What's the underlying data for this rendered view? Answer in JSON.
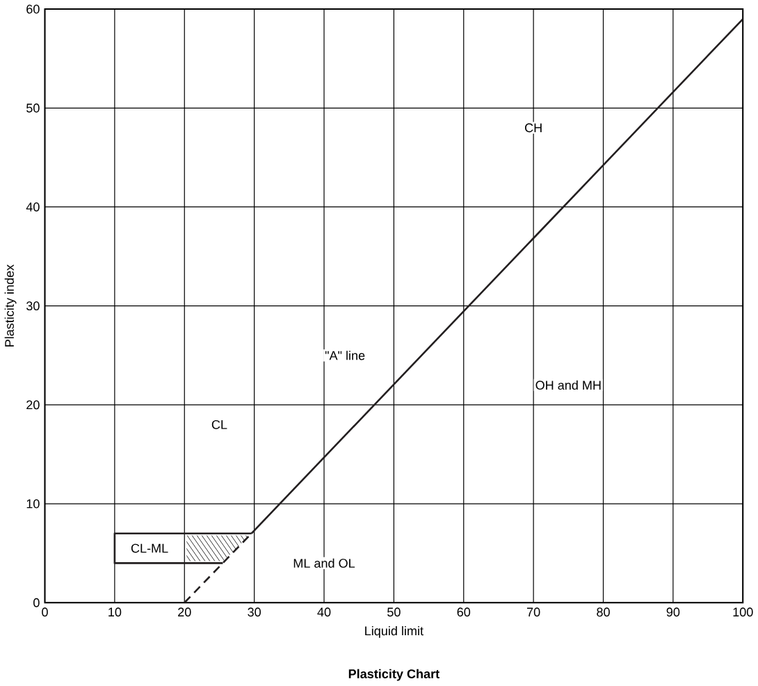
{
  "chart_data": {
    "type": "line",
    "title": "Plasticity Chart",
    "xlabel": "Liquid limit",
    "ylabel": "Plasticity index",
    "xlim": [
      0,
      100
    ],
    "ylim": [
      0,
      60
    ],
    "xticks": [
      0,
      10,
      20,
      30,
      40,
      50,
      60,
      70,
      80,
      90,
      100
    ],
    "yticks": [
      0,
      10,
      20,
      30,
      40,
      50,
      60
    ],
    "grid": true,
    "series": [
      {
        "color": "#231f20",
        "line_style": "dashed",
        "x": [
          20,
          29.6
        ],
        "values": [
          0,
          7
        ]
      },
      {
        "color": "#231f20",
        "line_style": "solid",
        "x": [
          29.6,
          100
        ],
        "values": [
          7,
          59
        ]
      },
      {
        "color": "#231f20",
        "line_style": "solid",
        "x": [
          25.5,
          10,
          10,
          29.6
        ],
        "values": [
          4,
          4,
          7,
          7
        ]
      }
    ],
    "annotations": [
      "CH",
      "OH and MH",
      "CL",
      "ML and OL",
      "CL-ML",
      "\"A\" line"
    ]
  }
}
